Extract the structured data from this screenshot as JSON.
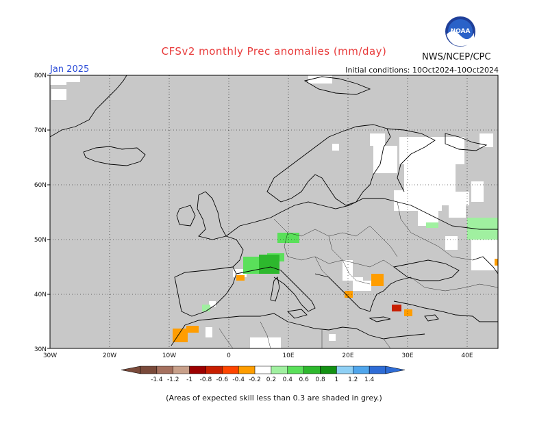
{
  "header": {
    "title": "CFSv2 monthly Prec anomalies (mm/day)",
    "agency": "NWS/NCEP/CPC",
    "logo_text": "NOAA",
    "month": "Jan 2025",
    "initial_conditions": "Initial conditions: 10Oct2024-10Oct2024"
  },
  "map": {
    "region": "Europe",
    "lat_ticks": [
      "80N",
      "70N",
      "60N",
      "50N",
      "40N",
      "30N"
    ],
    "lon_ticks": [
      "30W",
      "20W",
      "10W",
      "0",
      "10E",
      "20E",
      "30E",
      "40E"
    ],
    "mask_color": "#c8c8c8",
    "land_outline_color": "#000000"
  },
  "legend": {
    "labels": [
      "-1.4",
      "-1.2",
      "-1",
      "-0.8",
      "-0.6",
      "-0.4",
      "-0.2",
      "0.2",
      "0.4",
      "0.6",
      "0.8",
      "1",
      "1.2",
      "1.4"
    ],
    "colors": [
      "#7a4a3a",
      "#a5705e",
      "#c8a08a",
      "#9c0000",
      "#c81e00",
      "#ff4500",
      "#ff9d00",
      "#ffffff",
      "#a0f0a0",
      "#5ae05a",
      "#2db82d",
      "#139113",
      "#8fd0f5",
      "#50a6ec",
      "#2e6cd6"
    ],
    "note": "(Areas of expected skill less than 0.3 are shaded in grey.)"
  },
  "anomaly_patches": [
    {
      "region": "Central Europe",
      "value": 0.4,
      "color": "#5ae05a"
    },
    {
      "region": "Alps",
      "value": 0.6,
      "color": "#2db82d"
    },
    {
      "region": "Eastern Russia",
      "value": 0.2,
      "color": "#a0f0a0"
    },
    {
      "region": "Morocco",
      "value": -0.2,
      "color": "#ff9d00"
    },
    {
      "region": "Bulgaria",
      "value": -0.2,
      "color": "#ff9d00"
    },
    {
      "region": "Aegean/Turkey coast",
      "value": -0.6,
      "color": "#c81e00"
    }
  ]
}
